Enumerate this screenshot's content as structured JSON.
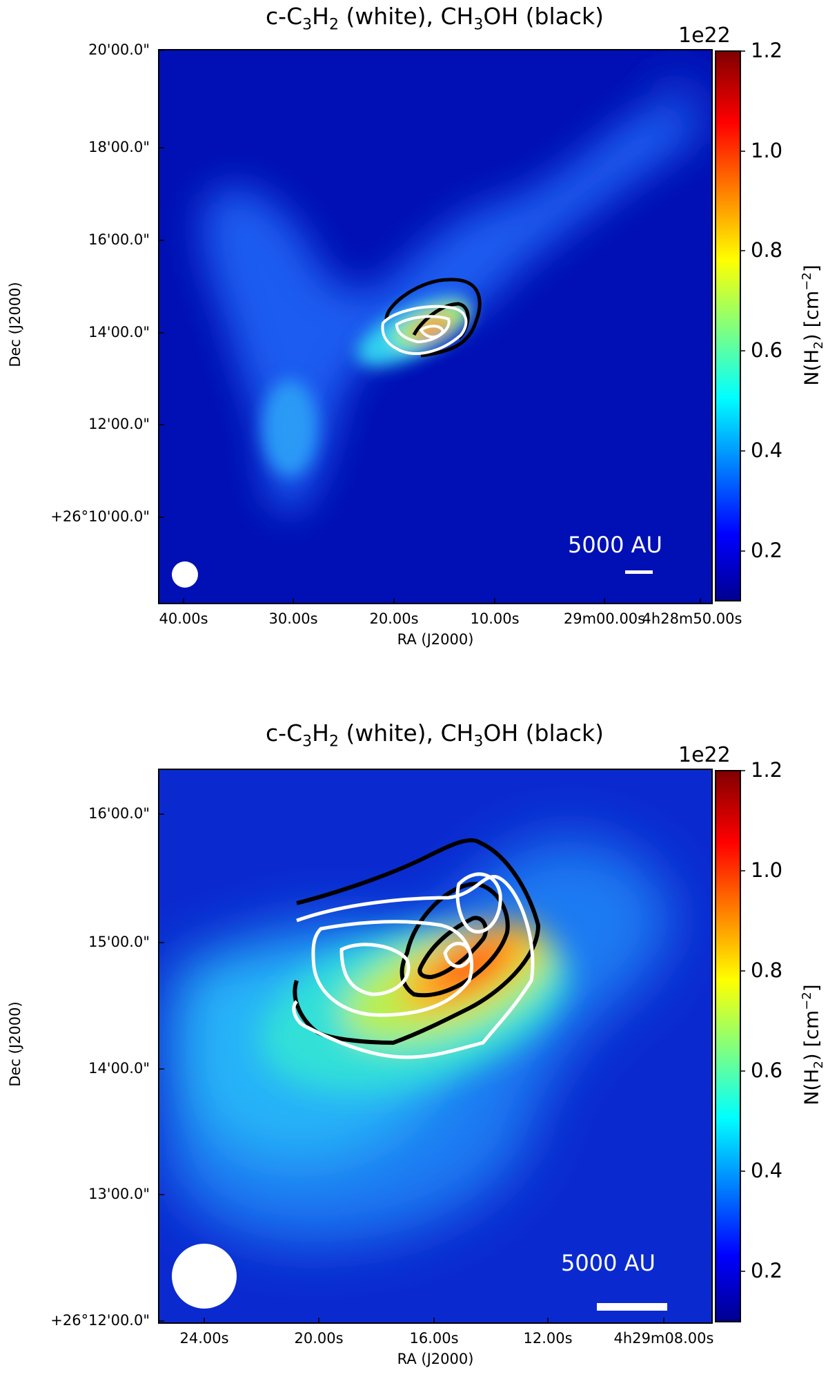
{
  "chart_data": [
    {
      "type": "heatmap",
      "title": {
        "pre": "c-C",
        "sub1": "3",
        "mid1": "H",
        "sub2": "2",
        "mid2": " (white), CH",
        "sub3": "3",
        "post": "OH (black)"
      },
      "xlabel": "RA (J2000)",
      "ylabel": "Dec (J2000)",
      "x_ticks": [
        "40.00s",
        "30.00s",
        "20.00s",
        "10.00s",
        "29m00.00s",
        "4h28m50.00s"
      ],
      "y_ticks": [
        "20'00.0\"",
        "18'00.0\"",
        "16'00.0\"",
        "14'00.0\"",
        "12'00.0\"",
        "+26°10'00.0\""
      ],
      "colorbar": {
        "label": {
          "pre": "N(H",
          "sub": "2",
          "mid": ") [cm",
          "sup": "−2",
          "post": "]"
        },
        "exponent": "1e22",
        "ticks": [
          "1.2",
          "1.0",
          "0.8",
          "0.6",
          "0.4",
          "0.2"
        ],
        "range": [
          0.1,
          1.2
        ],
        "colormap": "jet"
      },
      "scalebar_label": "5000 AU",
      "contours": {
        "c-C3H2": "#ffffff",
        "CH3OH": "#000000"
      },
      "beam": "circle-bottom-left",
      "grid": false
    },
    {
      "type": "heatmap",
      "title": {
        "pre": "c-C",
        "sub1": "3",
        "mid1": "H",
        "sub2": "2",
        "mid2": " (white), CH",
        "sub3": "3",
        "post": "OH (black)"
      },
      "xlabel": "RA (J2000)",
      "ylabel": "Dec (J2000)",
      "x_ticks": [
        "24.00s",
        "20.00s",
        "16.00s",
        "12.00s",
        "4h29m08.00s"
      ],
      "y_ticks": [
        "16'00.0\"",
        "15'00.0\"",
        "14'00.0\"",
        "13'00.0\"",
        "+26°12'00.0\""
      ],
      "colorbar": {
        "label": {
          "pre": "N(H",
          "sub": "2",
          "mid": ") [cm",
          "sup": "−2",
          "post": "]"
        },
        "exponent": "1e22",
        "ticks": [
          "1.2",
          "1.0",
          "0.8",
          "0.6",
          "0.4",
          "0.2"
        ],
        "range": [
          0.1,
          1.2
        ],
        "colormap": "jet"
      },
      "scalebar_label": "5000 AU",
      "contours": {
        "c-C3H2": "#ffffff",
        "CH3OH": "#000000"
      },
      "beam": "circle-bottom-left",
      "grid": false
    }
  ]
}
